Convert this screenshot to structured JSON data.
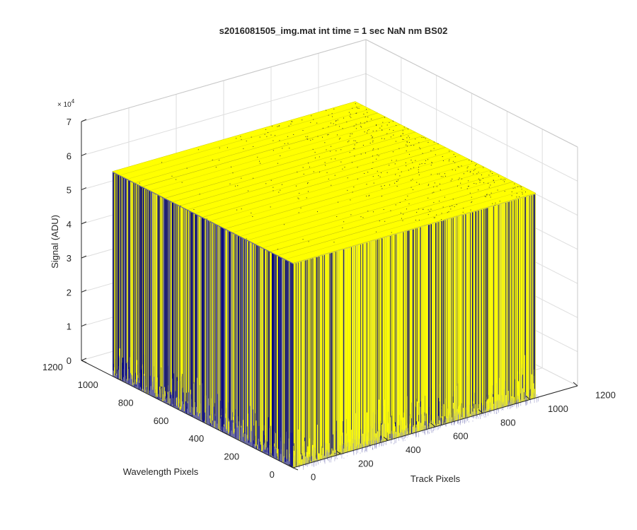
{
  "chart_data": {
    "type": "surface",
    "title": "s2016081505_img.mat int time = 1 sec  NaN nm BS02",
    "xlabel": "Track Pixels",
    "ylabel": "Wavelength Pixels",
    "zlabel": "Signal (ADU)",
    "exponent_label": "× 10",
    "exponent_power": "4",
    "x_ticks": [
      "0",
      "200",
      "400",
      "600",
      "800",
      "1000",
      "1200"
    ],
    "y_ticks": [
      "0",
      "200",
      "400",
      "600",
      "800",
      "1000",
      "1200"
    ],
    "z_ticks": [
      "0",
      "1",
      "2",
      "3",
      "4",
      "5",
      "6",
      "7"
    ],
    "xlim": [
      0,
      1200
    ],
    "ylim": [
      0,
      1200
    ],
    "zlim": [
      0,
      70000
    ],
    "data_extent": {
      "x": [
        0,
        1024
      ],
      "y": [
        0,
        1024
      ]
    },
    "plateau_signal": 60000,
    "noise_floor": 0,
    "grid": true,
    "colormap": {
      "high": "#ffff00",
      "low": "#000080"
    },
    "view": "3d-perspective"
  }
}
